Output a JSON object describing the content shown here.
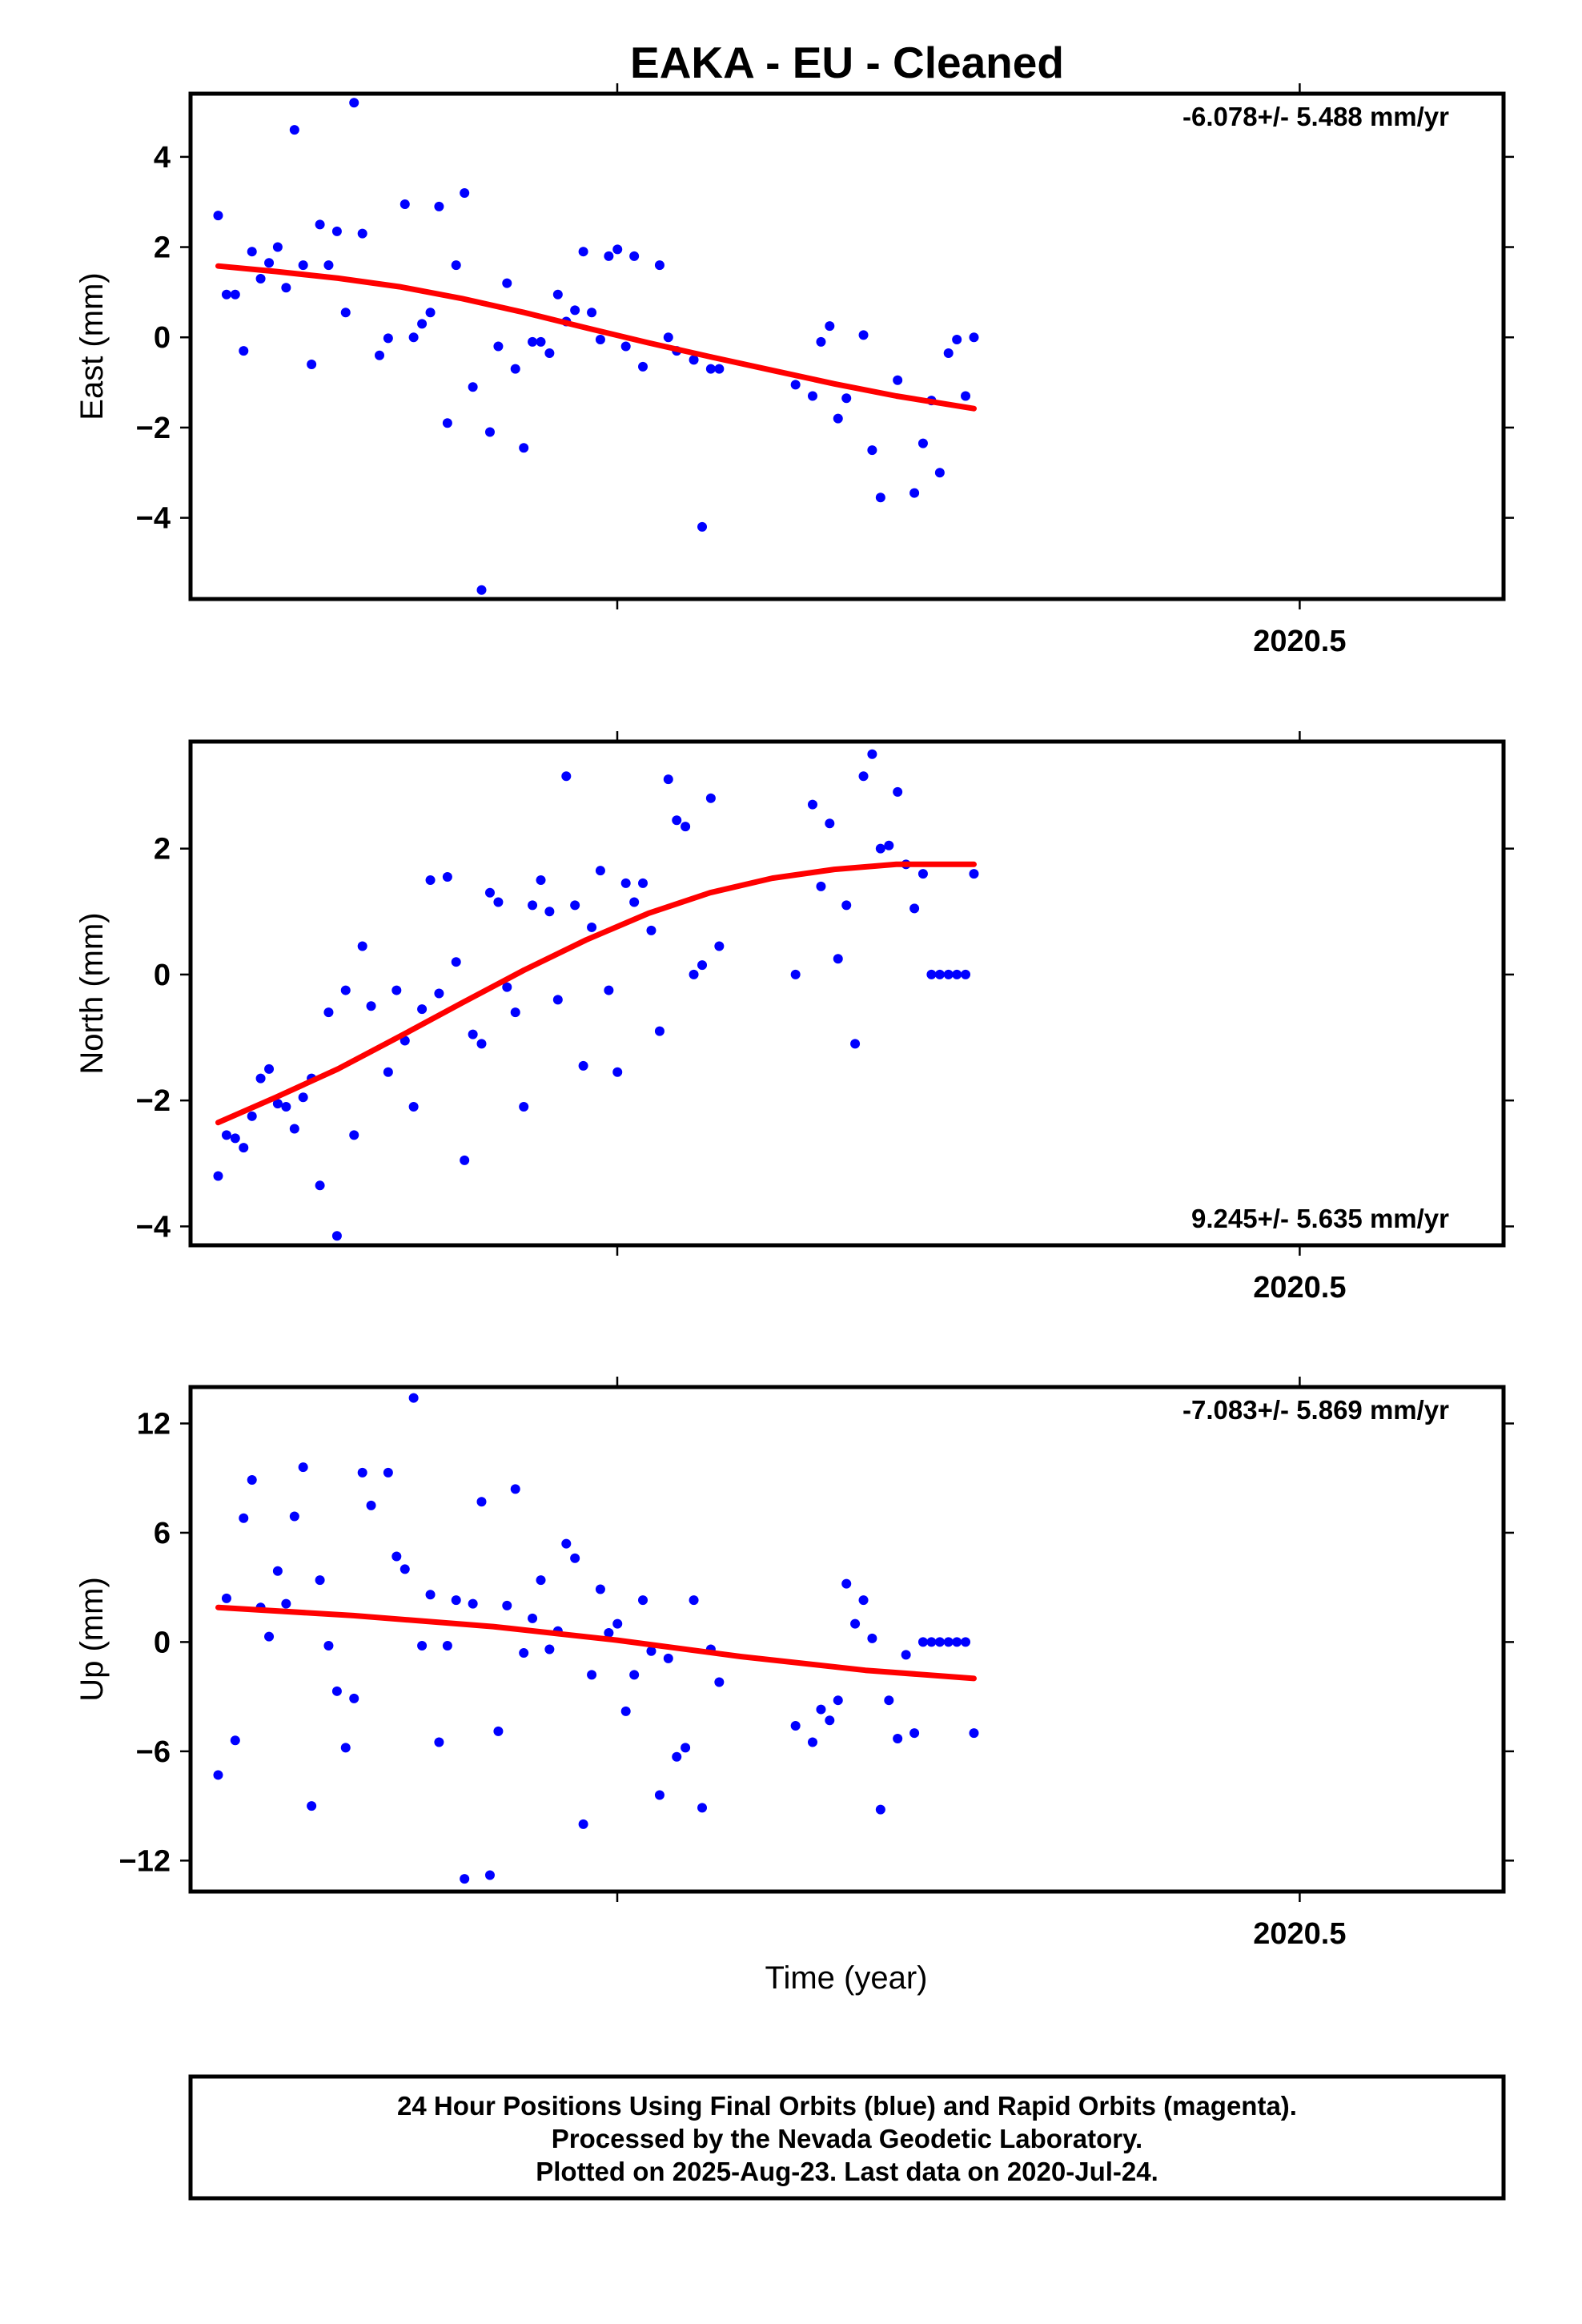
{
  "title": "EAKA  - EU - Cleaned",
  "xlabel": "Time (year)",
  "footer": {
    "line1": "24 Hour Positions Using Final Orbits (blue) and Rapid Orbits (magenta).",
    "line2": "Processed by the Nevada Geodetic Laboratory.",
    "line3": "Plotted on 2025-Aug-23. Last data on 2020-Jul-24."
  },
  "colors": {
    "points": "#0000ff",
    "fit": "#ff0000"
  },
  "chart_data": [
    {
      "type": "scatter",
      "ylabel": "East (mm)",
      "rate_label": "-6.078+/- 5.488 mm/yr",
      "xlim": [
        2020.1425,
        2020.5657
      ],
      "ylim": [
        -5.8,
        5.4
      ],
      "x_ticks": [
        2020.5
      ],
      "x_tick_labels": [
        "2020.5"
      ],
      "y_ticks": [
        4,
        2,
        0,
        -2,
        -4
      ],
      "y_tick_labels": [
        "4",
        "2",
        "0",
        "−2",
        "−4"
      ],
      "points": {
        "x": [
          2020.1514,
          2020.1541,
          2020.1569,
          2020.1596,
          2020.1623,
          2020.1651,
          2020.1678,
          2020.1706,
          2020.1733,
          2020.176,
          2020.1788,
          2020.1815,
          2020.1842,
          2020.187,
          2020.1897,
          2020.1925,
          2020.1952,
          2020.1979,
          2020.2034,
          2020.2062,
          2020.2116,
          2020.2144,
          2020.2171,
          2020.2198,
          2020.2226,
          2020.2253,
          2020.2281,
          2020.2308,
          2020.2335,
          2020.2363,
          2020.239,
          2020.2417,
          2020.2445,
          2020.2472,
          2020.2499,
          2020.2527,
          2020.2554,
          2020.2582,
          2020.2609,
          2020.2636,
          2020.2664,
          2020.2691,
          2020.2718,
          2020.2746,
          2020.2773,
          2020.2801,
          2020.2828,
          2020.2855,
          2020.2883,
          2020.2937,
          2020.2965,
          2020.2992,
          2020.3047,
          2020.3074,
          2020.3102,
          2020.3129,
          2020.3375,
          2020.343,
          2020.3457,
          2020.3485,
          2020.3512,
          2020.3539,
          2020.3594,
          2020.3622,
          2020.3649,
          2020.3704,
          2020.3758,
          2020.3786,
          2020.3813,
          2020.384,
          2020.3868,
          2020.3895,
          2020.3923,
          2020.395
        ],
        "y": [
          2.7,
          0.95,
          0.95,
          -0.3,
          1.9,
          1.3,
          1.65,
          2.0,
          1.1,
          4.6,
          1.6,
          -0.6,
          2.5,
          1.6,
          2.35,
          0.55,
          5.2,
          2.3,
          -0.4,
          -0.02,
          2.95,
          0.0,
          0.3,
          0.55,
          2.9,
          -1.9,
          1.6,
          3.2,
          -1.1,
          -5.6,
          -2.1,
          -0.2,
          1.2,
          -0.7,
          -2.45,
          -0.1,
          -0.1,
          -0.35,
          0.95,
          0.35,
          0.6,
          1.9,
          0.55,
          -0.05,
          1.8,
          1.95,
          -0.2,
          1.8,
          -0.65,
          1.6,
          0.0,
          -0.3,
          -0.5,
          -4.2,
          -0.7,
          -0.7,
          -1.05,
          -1.3,
          -0.1,
          0.25,
          -1.8,
          -1.35,
          0.05,
          -2.5,
          -3.55,
          -0.95,
          -3.45,
          -2.35,
          -1.4,
          -3.0,
          -0.35,
          -0.05,
          -1.3,
          0.0
        ]
      },
      "fit": {
        "x": [
          2020.1514,
          2020.17,
          2020.19,
          2020.21,
          2020.23,
          2020.25,
          2020.27,
          2020.29,
          2020.31,
          2020.33,
          2020.35,
          2020.37,
          2020.395
        ],
        "y": [
          1.58,
          1.46,
          1.31,
          1.12,
          0.86,
          0.55,
          0.21,
          -0.12,
          -0.43,
          -0.73,
          -1.03,
          -1.3,
          -1.58
        ]
      }
    },
    {
      "type": "scatter",
      "ylabel": "North (mm)",
      "rate_label": "9.245+/- 5.635 mm/yr",
      "xlim": [
        2020.1425,
        2020.5657
      ],
      "ylim": [
        -4.3,
        3.7
      ],
      "x_ticks": [
        2020.5
      ],
      "x_tick_labels": [
        "2020.5"
      ],
      "y_ticks": [
        2,
        0,
        -2,
        -4
      ],
      "y_tick_labels": [
        "2",
        "0",
        "−2",
        "−4"
      ],
      "points": {
        "x": [
          2020.1514,
          2020.1541,
          2020.1569,
          2020.1596,
          2020.1623,
          2020.1651,
          2020.1678,
          2020.1706,
          2020.1733,
          2020.176,
          2020.1788,
          2020.1815,
          2020.1842,
          2020.187,
          2020.1897,
          2020.1925,
          2020.1952,
          2020.1979,
          2020.2007,
          2020.2062,
          2020.2089,
          2020.2116,
          2020.2144,
          2020.2171,
          2020.2198,
          2020.2226,
          2020.2253,
          2020.2281,
          2020.2308,
          2020.2335,
          2020.2363,
          2020.239,
          2020.2417,
          2020.2445,
          2020.2472,
          2020.2499,
          2020.2527,
          2020.2554,
          2020.2582,
          2020.2609,
          2020.2636,
          2020.2664,
          2020.2691,
          2020.2718,
          2020.2746,
          2020.2773,
          2020.2801,
          2020.2828,
          2020.2855,
          2020.2883,
          2020.291,
          2020.2937,
          2020.2965,
          2020.2992,
          2020.302,
          2020.3047,
          2020.3074,
          2020.3102,
          2020.3129,
          2020.3375,
          2020.343,
          2020.3457,
          2020.3485,
          2020.3512,
          2020.3539,
          2020.3567,
          2020.3594,
          2020.3622,
          2020.3649,
          2020.3676,
          2020.3704,
          2020.3731,
          2020.3758,
          2020.3786,
          2020.3813,
          2020.384,
          2020.3868,
          2020.3895,
          2020.3923,
          2020.395
        ],
        "y": [
          -3.2,
          -2.55,
          -2.6,
          -2.75,
          -2.25,
          -1.65,
          -1.5,
          -2.05,
          -2.1,
          -2.45,
          -1.95,
          -1.65,
          -3.35,
          -0.6,
          -4.15,
          -0.25,
          -2.55,
          0.45,
          -0.5,
          -1.55,
          -0.25,
          -1.05,
          -2.1,
          -0.55,
          1.5,
          -0.3,
          1.55,
          0.2,
          -2.95,
          -0.95,
          -1.1,
          1.3,
          1.15,
          -0.2,
          -0.6,
          -2.1,
          1.1,
          1.5,
          1.0,
          -0.4,
          3.15,
          1.1,
          -1.45,
          0.75,
          1.65,
          -0.25,
          -1.55,
          1.45,
          1.15,
          1.45,
          0.7,
          -0.9,
          3.1,
          2.45,
          2.35,
          0.0,
          0.15,
          2.8,
          0.45,
          0.0,
          2.7,
          1.4,
          2.4,
          0.25,
          1.1,
          -1.1,
          3.15,
          3.5,
          2.0,
          2.05,
          2.9,
          1.75,
          1.05,
          1.6,
          0.0,
          0.0,
          0.0,
          0.0,
          0.0,
          1.6
        ]
      },
      "fit": {
        "x": [
          2020.1514,
          2020.17,
          2020.19,
          2020.21,
          2020.23,
          2020.25,
          2020.27,
          2020.29,
          2020.31,
          2020.33,
          2020.35,
          2020.37,
          2020.395
        ],
        "y": [
          -2.35,
          -1.95,
          -1.5,
          -0.98,
          -0.45,
          0.07,
          0.55,
          0.97,
          1.3,
          1.53,
          1.67,
          1.75,
          1.75
        ]
      }
    },
    {
      "type": "scatter",
      "ylabel": "Up (mm)",
      "rate_label": "-7.083+/- 5.869 mm/yr",
      "xlim": [
        2020.1425,
        2020.5657
      ],
      "ylim": [
        -13.7,
        14.0
      ],
      "x_ticks": [
        2020.5
      ],
      "x_tick_labels": [
        "2020.5"
      ],
      "y_ticks": [
        12,
        6,
        0,
        -6,
        -12
      ],
      "y_tick_labels": [
        "12",
        "6",
        "0",
        "−6",
        "−12"
      ],
      "points": {
        "x": [
          2020.1514,
          2020.1541,
          2020.1569,
          2020.1596,
          2020.1623,
          2020.1651,
          2020.1678,
          2020.1706,
          2020.1733,
          2020.176,
          2020.1788,
          2020.1815,
          2020.1842,
          2020.187,
          2020.1897,
          2020.1925,
          2020.1952,
          2020.1979,
          2020.2007,
          2020.2062,
          2020.2089,
          2020.2116,
          2020.2144,
          2020.2171,
          2020.2198,
          2020.2226,
          2020.2253,
          2020.2281,
          2020.2308,
          2020.2335,
          2020.2363,
          2020.239,
          2020.2417,
          2020.2445,
          2020.2472,
          2020.2499,
          2020.2527,
          2020.2554,
          2020.2582,
          2020.2609,
          2020.2636,
          2020.2664,
          2020.2691,
          2020.2718,
          2020.2746,
          2020.2773,
          2020.2801,
          2020.2828,
          2020.2855,
          2020.2883,
          2020.291,
          2020.2937,
          2020.2965,
          2020.2992,
          2020.302,
          2020.3047,
          2020.3074,
          2020.3102,
          2020.3129,
          2020.3375,
          2020.343,
          2020.3457,
          2020.3485,
          2020.3512,
          2020.3539,
          2020.3567,
          2020.3594,
          2020.3622,
          2020.3649,
          2020.3676,
          2020.3704,
          2020.3731,
          2020.3758,
          2020.3786,
          2020.3813,
          2020.384,
          2020.3868,
          2020.3895,
          2020.3923,
          2020.395
        ],
        "y": [
          -7.3,
          2.4,
          -5.4,
          6.8,
          8.9,
          1.9,
          0.3,
          3.9,
          2.1,
          6.9,
          9.6,
          -9.0,
          3.4,
          -0.2,
          -2.7,
          -5.8,
          -3.1,
          9.3,
          7.5,
          9.3,
          4.7,
          4.0,
          13.4,
          -0.2,
          2.6,
          -5.5,
          -0.2,
          2.3,
          -13.0,
          2.1,
          7.7,
          -12.8,
          -4.9,
          2.0,
          8.4,
          -0.6,
          1.3,
          3.4,
          -0.4,
          0.6,
          5.4,
          4.6,
          -10.0,
          -1.8,
          2.9,
          0.5,
          1.0,
          -3.8,
          -1.8,
          2.3,
          -0.5,
          -8.4,
          -0.9,
          -6.3,
          -5.8,
          2.3,
          -9.1,
          -0.4,
          -2.2,
          -4.6,
          -5.5,
          -3.7,
          -4.3,
          -3.2,
          3.2,
          1.0,
          2.3,
          0.2,
          -9.2,
          -3.2,
          -5.3,
          -0.7,
          -5.0,
          0.0,
          0.0,
          0.0,
          0.0,
          0.0,
          0.0,
          -5.0
        ]
      },
      "fit": {
        "x": [
          2020.1514,
          2020.195,
          2020.24,
          2020.28,
          2020.32,
          2020.36,
          2020.395
        ],
        "y": [
          1.9,
          1.45,
          0.85,
          0.1,
          -0.8,
          -1.55,
          -2.0
        ]
      }
    }
  ]
}
